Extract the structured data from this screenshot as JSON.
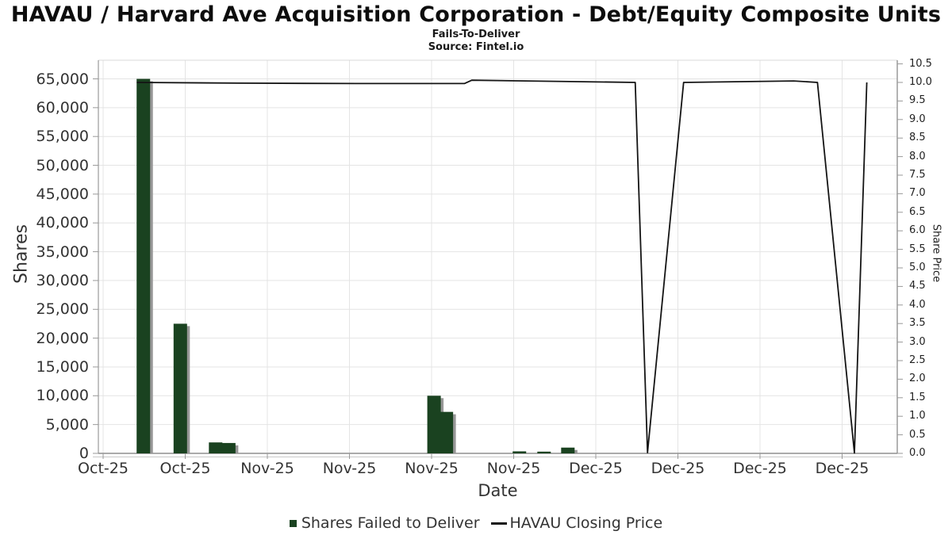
{
  "header": {
    "title": "HAVAU / Harvard Ave Acquisition Corporation - Debt/Equity Composite Units",
    "subtitle": "Fails-To-Deliver",
    "source": "Source: Fintel.io"
  },
  "legend": {
    "bar_series_label": "Shares Failed to Deliver",
    "line_series_label": "HAVAU Closing Price"
  },
  "colors": {
    "bar_fill": "#1a4220",
    "bar_shadow": "#979797",
    "line_stroke": "#141414",
    "gridline": "#e4e4e4",
    "axis_border": "#9a9a9a",
    "axis_border_light": "#d9d9d9",
    "tick_mark": "#999999",
    "outer_axis_line": "#cfcfcf"
  },
  "chart_data": {
    "type": "bar",
    "subtype": "composite bar + line, dual y-axis",
    "title": "HAVAU / Harvard Ave Acquisition Corporation - Debt/Equity Composite Units",
    "subtitle": "Fails-To-Deliver",
    "source": "Source: Fintel.io",
    "xlabel": "Date",
    "x_ticks": [
      "Oct-25",
      "Oct-25",
      "Nov-25",
      "Nov-25",
      "Nov-25",
      "Nov-25",
      "Dec-25",
      "Dec-25",
      "Dec-25",
      "Dec-25"
    ],
    "x_note": "x values below are in x-tick-index units (0 = first tick, 9 = last tick)",
    "left_axis": {
      "label": "Shares",
      "min": 0,
      "max": 65000,
      "step": 5000,
      "grid": true
    },
    "right_axis": {
      "label": "Share Price",
      "min": 0,
      "max": 10.5,
      "step": 0.5,
      "grid": false
    },
    "bars": {
      "name": "Shares Failed to Deliver",
      "axis": "left",
      "points": [
        {
          "x": 0.49,
          "value": 65000
        },
        {
          "x": 0.94,
          "value": 22500
        },
        {
          "x": 1.37,
          "value": 1900
        },
        {
          "x": 1.53,
          "value": 1800
        },
        {
          "x": 4.03,
          "value": 10000
        },
        {
          "x": 4.18,
          "value": 7200
        },
        {
          "x": 5.07,
          "value": 350
        },
        {
          "x": 5.37,
          "value": 300
        },
        {
          "x": 5.66,
          "value": 1000
        }
      ]
    },
    "line": {
      "name": "HAVAU Closing Price",
      "axis": "right",
      "points": [
        {
          "x": 0.41,
          "price": 10.0
        },
        {
          "x": 1.64,
          "price": 9.98
        },
        {
          "x": 3.09,
          "price": 9.97
        },
        {
          "x": 4.4,
          "price": 9.97
        },
        {
          "x": 4.49,
          "price": 10.06
        },
        {
          "x": 5.51,
          "price": 10.03
        },
        {
          "x": 6.48,
          "price": 10.0
        },
        {
          "x": 6.63,
          "price": 0.02
        },
        {
          "x": 7.07,
          "price": 10.0
        },
        {
          "x": 8.41,
          "price": 10.04
        },
        {
          "x": 8.7,
          "price": 10.0
        },
        {
          "x": 9.15,
          "price": 0.01
        },
        {
          "x": 9.3,
          "price": 10.0
        }
      ]
    }
  }
}
